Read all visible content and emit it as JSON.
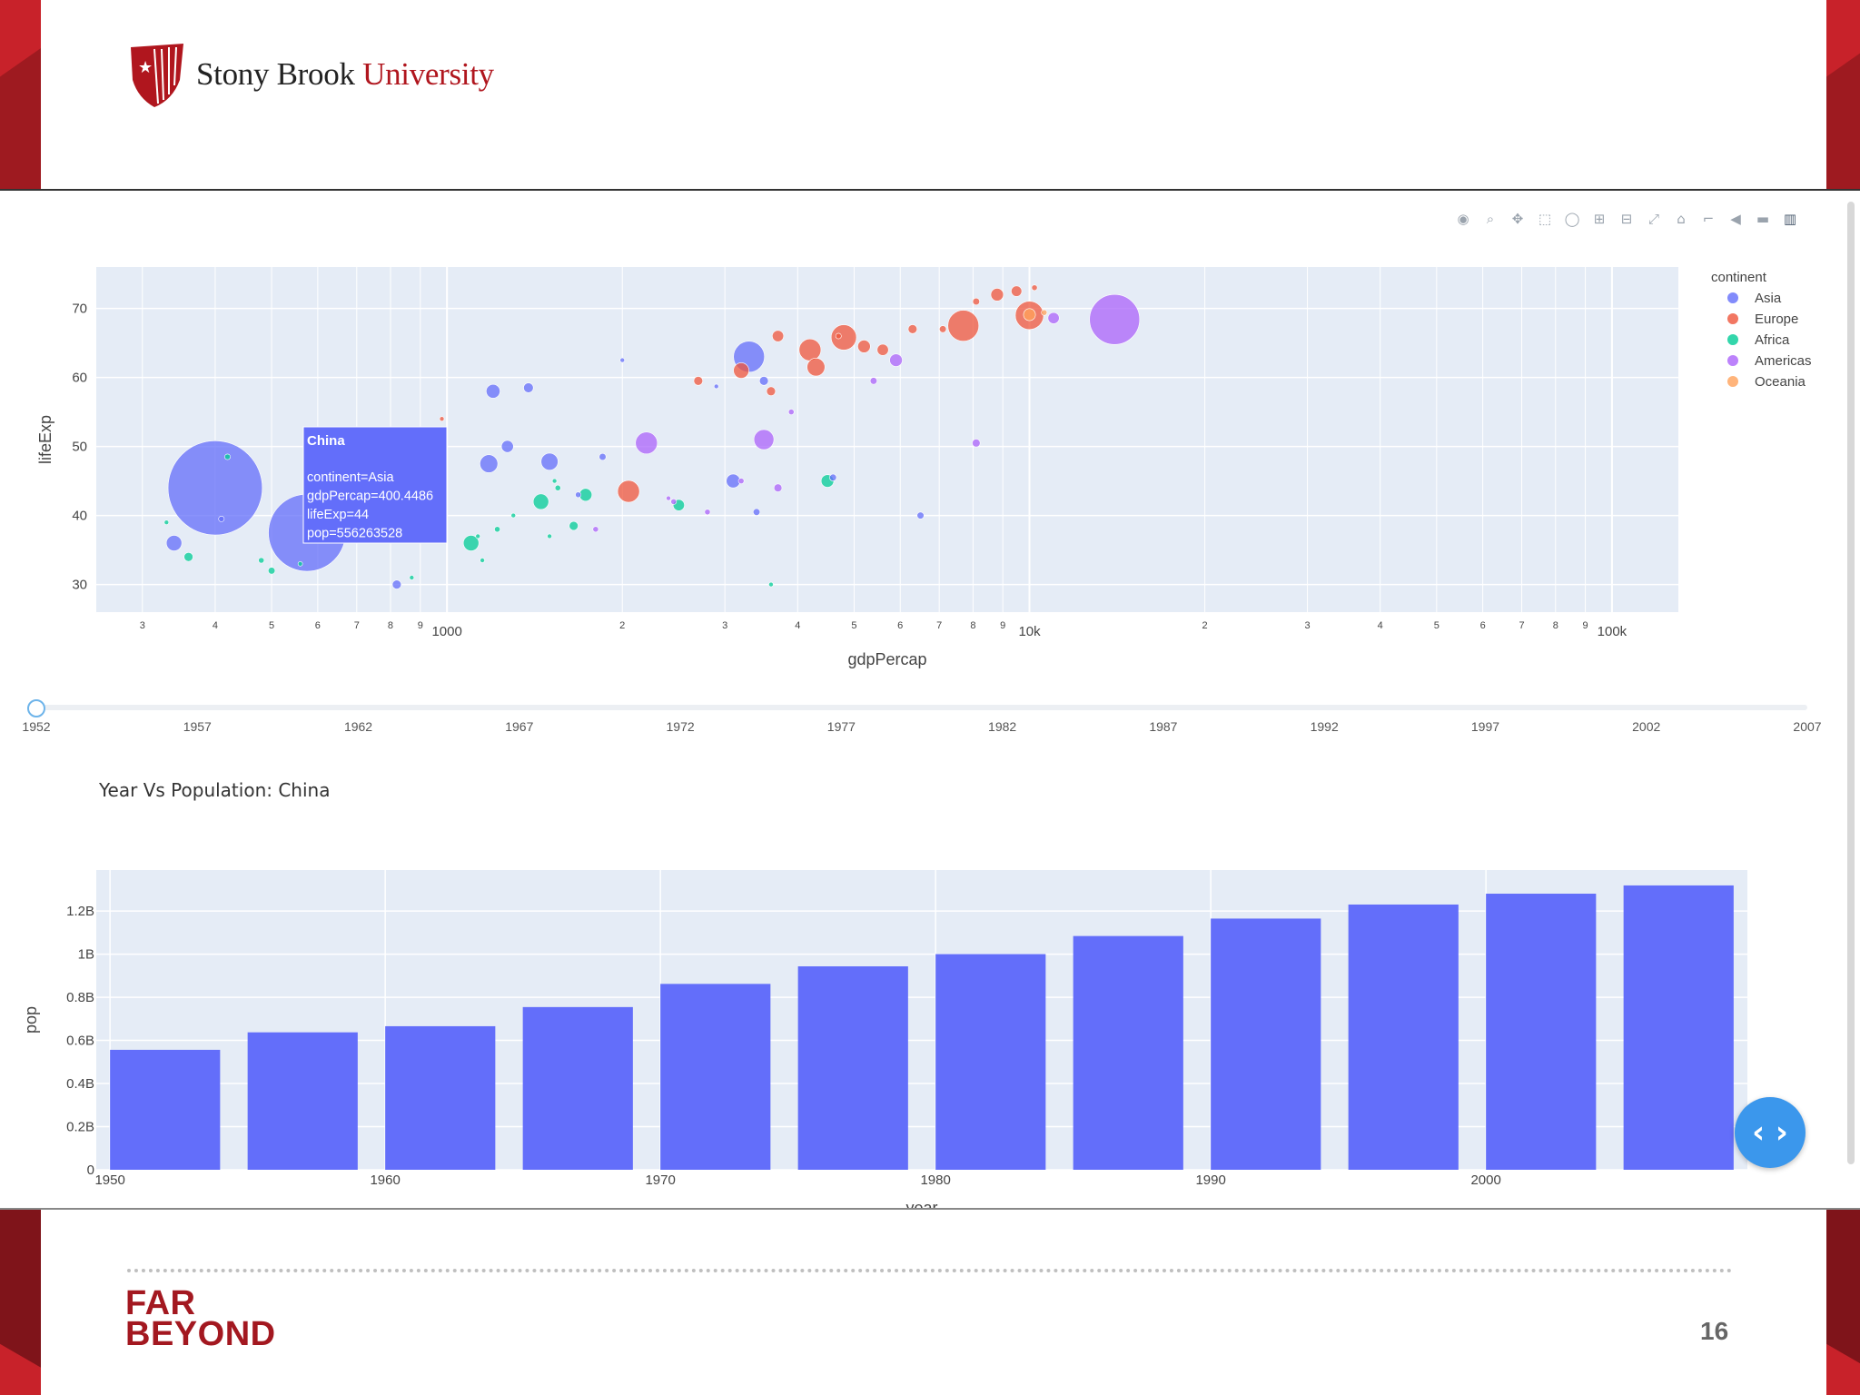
{
  "branding": {
    "university_name": "Stony Brook",
    "university_suffix": "University",
    "footer_logo_line1": "FAR",
    "footer_logo_line2": "BEYOND",
    "page_number": "16"
  },
  "colors": {
    "brand_red": "#c8222a",
    "asia": "#636efa",
    "europe": "#ef553b",
    "africa": "#00cc96",
    "americas": "#ab63fa",
    "oceania": "#ffa15a",
    "plot_bg": "#e5ecf6",
    "fab": "#3b97ec"
  },
  "modebar": {
    "icons": [
      "camera-icon",
      "zoom-icon",
      "pan-icon",
      "box-select-icon",
      "lasso-icon",
      "zoom-in-icon",
      "zoom-out-icon",
      "autoscale-icon",
      "reset-axes-icon",
      "spike-lines-icon",
      "hover-closest-icon",
      "hover-compare-icon",
      "plotly-logo-icon"
    ]
  },
  "slider": {
    "years": [
      "1952",
      "1957",
      "1962",
      "1967",
      "1972",
      "1977",
      "1982",
      "1987",
      "1992",
      "1997",
      "2002",
      "2007"
    ],
    "selected": "1952"
  },
  "tooltip": {
    "title": "China",
    "continent": "continent=Asia",
    "gdp": "gdpPercap=400.4486",
    "life": "lifeExp=44",
    "pop": "pop=556263528"
  },
  "bar_chart_title": "Year Vs Population: China",
  "fab": {
    "icon": "code-toggle-icon",
    "glyph": "‹ ›"
  },
  "chart_data": [
    {
      "type": "scatter",
      "xlabel": "gdpPercap",
      "ylabel": "lifeExp",
      "x_scale": "log",
      "xlim": [
        250,
        130000
      ],
      "ylim": [
        26,
        76
      ],
      "y_ticks": [
        30,
        40,
        50,
        60,
        70
      ],
      "x_ticks_major": [
        {
          "v": 1000,
          "label": "1000"
        },
        {
          "v": 10000,
          "label": "10k"
        },
        {
          "v": 100000,
          "label": "100k"
        }
      ],
      "x_ticks_minor_digits": [
        "3",
        "4",
        "5",
        "6",
        "7",
        "8",
        "9"
      ],
      "legend": {
        "title": "continent",
        "position": "right",
        "entries": [
          "Asia",
          "Europe",
          "Africa",
          "Americas",
          "Oceania"
        ]
      },
      "grid": true,
      "series": [
        {
          "name": "Asia",
          "points": [
            [
              400,
              44,
              556
            ],
            [
              575,
              37.5,
              372
            ],
            [
              340,
              36,
              15
            ],
            [
              820,
              30,
              5
            ],
            [
              780,
              38,
              8
            ],
            [
              1200,
              58,
              12
            ],
            [
              1270,
              50,
              9
            ],
            [
              1380,
              58.5,
              6
            ],
            [
              1180,
              47.5,
              20
            ],
            [
              1500,
              47.8,
              18
            ],
            [
              1850,
              48.5,
              3
            ],
            [
              3300,
              63,
              60
            ],
            [
              3100,
              45,
              12
            ],
            [
              3500,
              59.5,
              5
            ],
            [
              4600,
              45.5,
              3
            ],
            [
              6500,
              40,
              3
            ],
            [
              1680,
              43,
              2
            ],
            [
              3400,
              40.5,
              3
            ],
            [
              2000,
              62.5,
              1
            ],
            [
              410,
              39.5,
              2
            ],
            [
              700,
              40.5,
              2
            ],
            [
              2900,
              58.7,
              1
            ]
          ]
        },
        {
          "name": "Europe",
          "points": [
            [
              4800,
              65.8,
              40
            ],
            [
              7700,
              67.5,
              60
            ],
            [
              4200,
              64,
              30
            ],
            [
              8100,
              71,
              3
            ],
            [
              10000,
              69,
              50
            ],
            [
              8800,
              72,
              10
            ],
            [
              4300,
              61.5,
              20
            ],
            [
              5200,
              64.5,
              10
            ],
            [
              5600,
              64,
              8
            ],
            [
              6300,
              67,
              5
            ],
            [
              7100,
              67,
              3
            ],
            [
              3200,
              61,
              15
            ],
            [
              2050,
              43.5,
              30
            ],
            [
              2700,
              59.5,
              5
            ],
            [
              3600,
              58,
              5
            ],
            [
              4700,
              66,
              2
            ],
            [
              10200,
              73,
              2
            ],
            [
              980,
              54,
              1
            ],
            [
              3700,
              66,
              8
            ],
            [
              9500,
              72.5,
              7
            ]
          ]
        },
        {
          "name": "Africa",
          "points": [
            [
              360,
              34,
              5
            ],
            [
              1100,
              36,
              15
            ],
            [
              1450,
              42,
              15
            ],
            [
              1650,
              38.5,
              5
            ],
            [
              1730,
              43,
              10
            ],
            [
              2500,
              41.5,
              8
            ],
            [
              4500,
              45,
              10
            ],
            [
              420,
              48.5,
              2
            ],
            [
              480,
              33.5,
              2
            ],
            [
              500,
              32,
              3
            ],
            [
              560,
              33,
              1
            ],
            [
              1130,
              37,
              1
            ],
            [
              1150,
              33.5,
              1
            ],
            [
              1220,
              38,
              2
            ],
            [
              1300,
              40,
              1
            ],
            [
              1550,
              44,
              2
            ],
            [
              1500,
              37,
              1
            ],
            [
              3600,
              30,
              1
            ],
            [
              870,
              31,
              1
            ],
            [
              330,
              39,
              1
            ],
            [
              950,
              43,
              1
            ],
            [
              1530,
              45,
              1
            ]
          ]
        },
        {
          "name": "Americas",
          "points": [
            [
              14000,
              68.4,
              157
            ],
            [
              2200,
              50.5,
              30
            ],
            [
              3500,
              51,
              25
            ],
            [
              5900,
              62.5,
              10
            ],
            [
              5400,
              59.5,
              3
            ],
            [
              3700,
              44,
              4
            ],
            [
              3900,
              55,
              2
            ],
            [
              11000,
              68.6,
              8
            ],
            [
              8100,
              50.5,
              4
            ],
            [
              3200,
              45,
              2
            ],
            [
              2450,
              42,
              2
            ],
            [
              2800,
              40.5,
              2
            ],
            [
              1800,
              38,
              2
            ],
            [
              2400,
              42.5,
              1
            ]
          ]
        },
        {
          "name": "Oceania",
          "points": [
            [
              10000,
              69.1,
              9
            ],
            [
              10600,
              69.4,
              2
            ]
          ]
        }
      ]
    },
    {
      "type": "bar",
      "title": "Year Vs Population: China",
      "xlabel": "year",
      "ylabel": "pop",
      "categories": [
        1952,
        1957,
        1962,
        1967,
        1972,
        1977,
        1982,
        1987,
        1992,
        1997,
        2002,
        2007
      ],
      "values": [
        556263528,
        637408000,
        665770000,
        754550000,
        862030000,
        943455000,
        1000281000,
        1084035000,
        1164970000,
        1230075000,
        1280400000,
        1318683096
      ],
      "xlim": [
        1949.5,
        2009.5
      ],
      "ylim": [
        0,
        1390000000
      ],
      "x_ticks": [
        1950,
        1960,
        1970,
        1980,
        1990,
        2000
      ],
      "y_ticks": [
        {
          "v": 0,
          "label": "0"
        },
        {
          "v": 200000000,
          "label": "0.2B"
        },
        {
          "v": 400000000,
          "label": "0.4B"
        },
        {
          "v": 600000000,
          "label": "0.6B"
        },
        {
          "v": 800000000,
          "label": "0.8B"
        },
        {
          "v": 1000000000,
          "label": "1B"
        },
        {
          "v": 1200000000,
          "label": "1.2B"
        }
      ],
      "grid": true,
      "color": "#636efa"
    }
  ]
}
